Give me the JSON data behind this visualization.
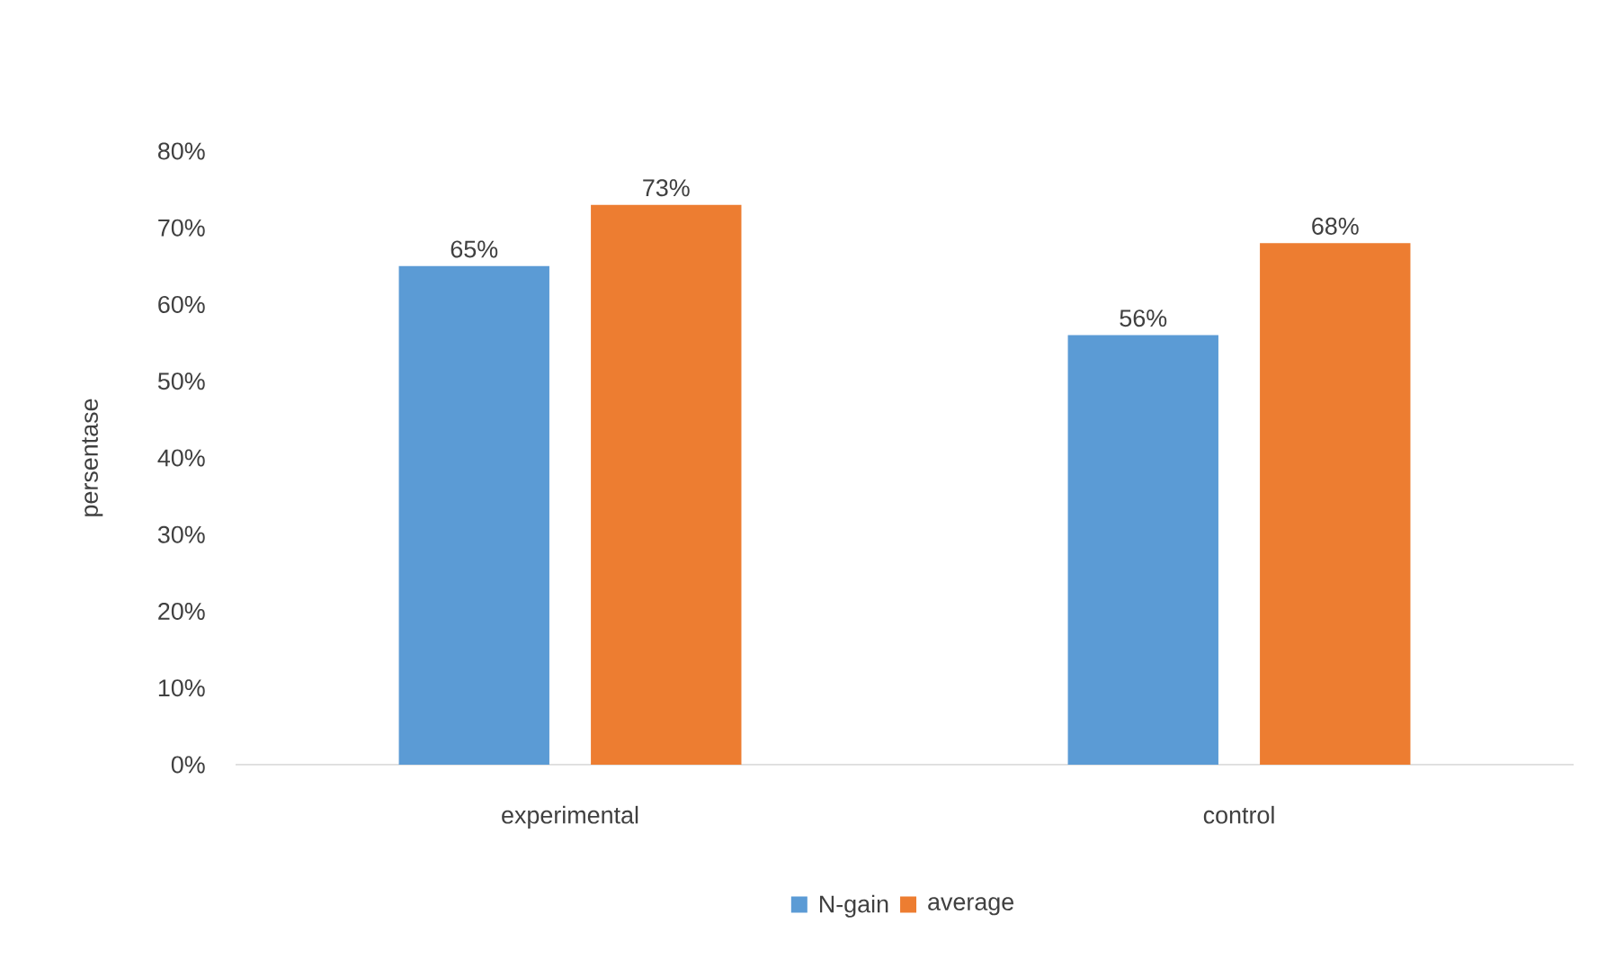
{
  "chart_data": {
    "type": "bar",
    "ylabel": "persentase",
    "categories": [
      "experimental",
      "control"
    ],
    "series": [
      {
        "name": "N-gain",
        "color": "#5b9bd5",
        "values": [
          65,
          56
        ],
        "value_labels": [
          "65%",
          "56%"
        ]
      },
      {
        "name": "average",
        "color": "#ed7d31",
        "values": [
          73,
          68
        ],
        "value_labels": [
          "73%",
          "68%"
        ]
      }
    ],
    "ylim": [
      0,
      80
    ],
    "yticks": [
      {
        "value": 0,
        "label": "0%"
      },
      {
        "value": 10,
        "label": "10%"
      },
      {
        "value": 20,
        "label": "20%"
      },
      {
        "value": 30,
        "label": "30%"
      },
      {
        "value": 40,
        "label": "40%"
      },
      {
        "value": 50,
        "label": "50%"
      },
      {
        "value": 60,
        "label": "60%"
      },
      {
        "value": 70,
        "label": "70%"
      },
      {
        "value": 80,
        "label": "80%"
      }
    ],
    "grid": false,
    "legend": "bottom"
  }
}
